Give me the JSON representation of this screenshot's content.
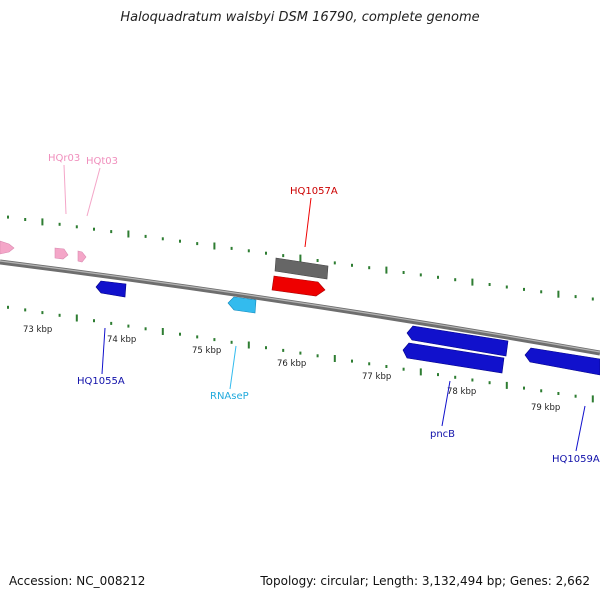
{
  "title": "Haloquadratum walsbyi DSM 16790, complete genome",
  "footer": {
    "accession": "Accession: NC_008212",
    "summary": "Topology: circular; Length: 3,132,494 bp; Genes: 2,662"
  },
  "colors": {
    "backbone": "#777777",
    "tick": "#2e7d32",
    "trna": "#f4a6c8",
    "gene_forward": "#ee0000",
    "gene_other": "#1111cc",
    "rnasep": "#33bbee",
    "hq1057_shadow": "#666666"
  },
  "scale_labels": [
    "73 kbp",
    "74 kbp",
    "75 kbp",
    "76 kbp",
    "77 kbp",
    "78 kbp",
    "79 kbp"
  ],
  "feature_labels": {
    "hqr03": "HQr03",
    "hqt03": "HQt03",
    "hq1057a": "HQ1057A",
    "hq1055a": "HQ1055A",
    "rnasep": "RNAseP",
    "pncb": "pncB",
    "hq1059a": "HQ1059A"
  }
}
